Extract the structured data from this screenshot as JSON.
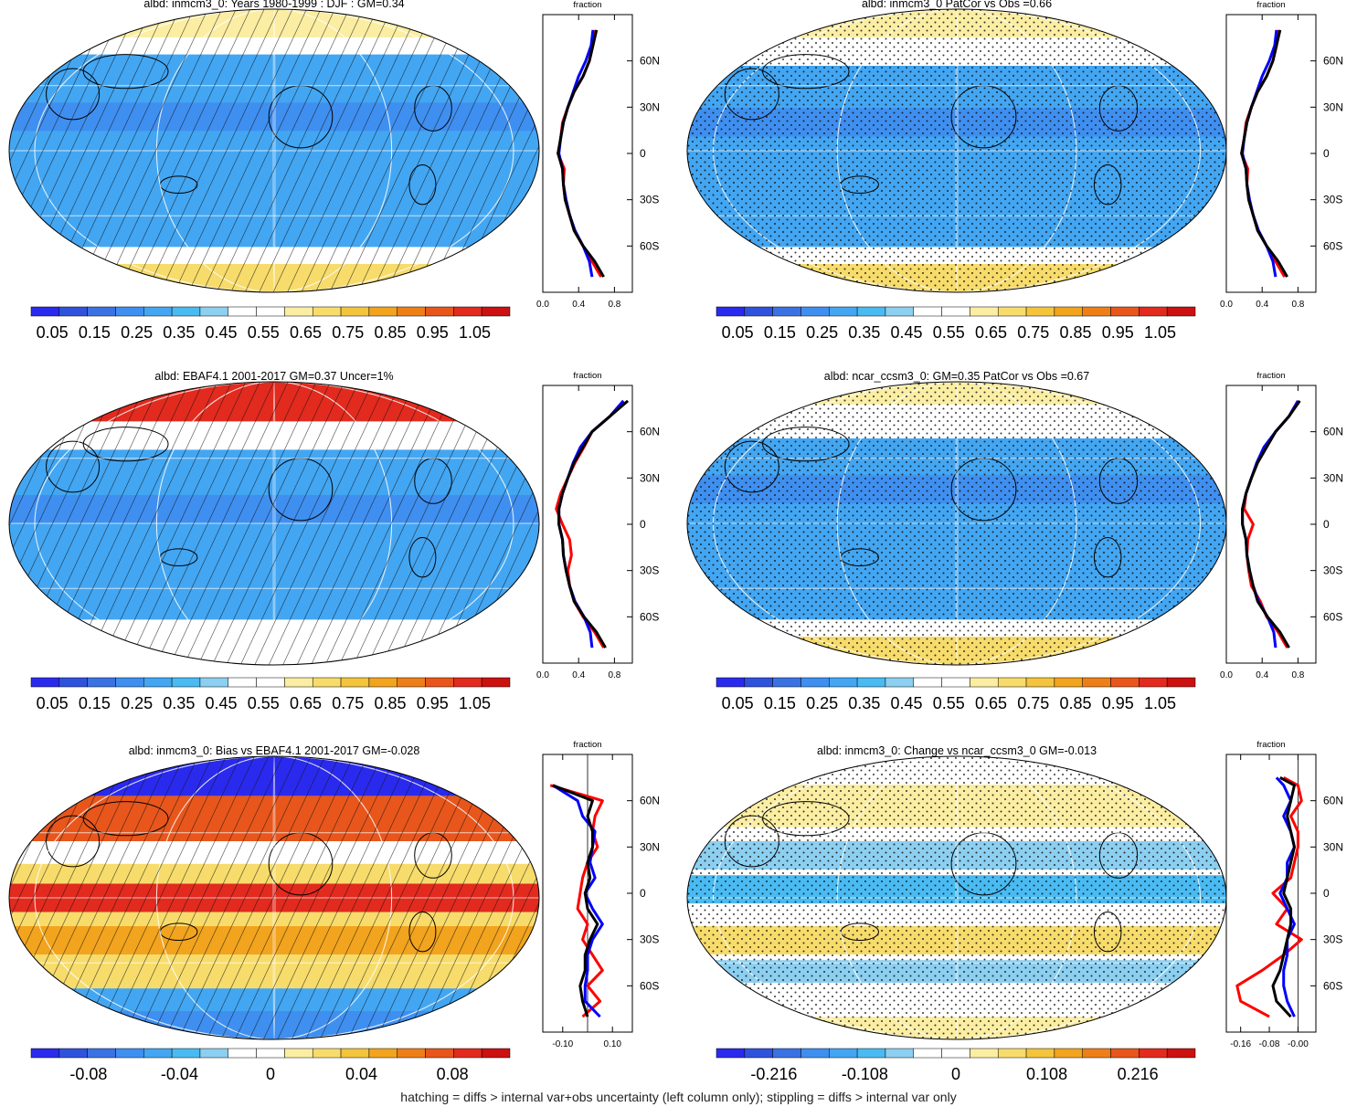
{
  "footer": "hatching = diffs > internal var+obs uncertainty (left column only); stippling = diffs > internal var only",
  "colors": {
    "abs_scale": [
      "#2a2aee",
      "#2f52dd",
      "#3a72e4",
      "#3f8ff0",
      "#43a6f2",
      "#49bbf2",
      "#8ccff0",
      "#ffffff",
      "#ffffff",
      "#fbeea3",
      "#f7dc6c",
      "#f4c43d",
      "#f2a41e",
      "#ee7f18",
      "#e8561c",
      "#e22a1e",
      "#cc1111"
    ],
    "diff_scale": [
      "#2a2aee",
      "#2f52dd",
      "#3a72e4",
      "#3f8ff0",
      "#43a6f2",
      "#49bbf2",
      "#8ccff0",
      "#ffffff",
      "#ffffff",
      "#fbeea3",
      "#f7dc6c",
      "#f4c43d",
      "#f2a41e",
      "#ee7f18",
      "#e8561c",
      "#e22a1e",
      "#cc1111"
    ],
    "model_line": "#ff0000",
    "obs_line": "#0000ff",
    "ref_line": "#000000"
  },
  "panels": [
    {
      "title": "albd: inmcm3_0: Years 1980-1999 : DJF : GM=0.34",
      "pattern": "hatch",
      "colorbar": {
        "scale": "abs_scale",
        "labels": [
          "0.05",
          "0.15",
          "0.25",
          "0.35",
          "0.45",
          "0.55",
          "0.65",
          "0.75",
          "0.85",
          "0.95",
          "1.05"
        ]
      },
      "zonal_title": "fraction",
      "zonal_xticks": [
        "0.0",
        "0.4",
        "0.8"
      ],
      "lat_labels": [
        "60N",
        "30N",
        "0",
        "30S",
        "60S"
      ]
    },
    {
      "title": "albd: inmcm3_0 PatCor vs Obs =0.66",
      "pattern": "stipple",
      "colorbar": {
        "scale": "abs_scale",
        "labels": [
          "0.05",
          "0.15",
          "0.25",
          "0.35",
          "0.45",
          "0.55",
          "0.65",
          "0.75",
          "0.85",
          "0.95",
          "1.05"
        ]
      },
      "zonal_title": "fraction",
      "zonal_xticks": [
        "0.0",
        "0.4",
        "0.8"
      ],
      "lat_labels": [
        "60N",
        "30N",
        "0",
        "30S",
        "60S"
      ]
    },
    {
      "title": "albd: EBAF4.1 2001-2017 GM=0.37 Uncer=1%",
      "pattern": "hatch",
      "colorbar": {
        "scale": "abs_scale",
        "labels": [
          "0.05",
          "0.15",
          "0.25",
          "0.35",
          "0.45",
          "0.55",
          "0.65",
          "0.75",
          "0.85",
          "0.95",
          "1.05"
        ]
      },
      "zonal_title": "fraction",
      "zonal_xticks": [
        "0.0",
        "0.4",
        "0.8"
      ],
      "lat_labels": [
        "60N",
        "30N",
        "0",
        "30S",
        "60S"
      ]
    },
    {
      "title": "albd: ncar_ccsm3_0: GM=0.35 PatCor vs Obs =0.67",
      "pattern": "stipple",
      "colorbar": {
        "scale": "abs_scale",
        "labels": [
          "0.05",
          "0.15",
          "0.25",
          "0.35",
          "0.45",
          "0.55",
          "0.65",
          "0.75",
          "0.85",
          "0.95",
          "1.05"
        ]
      },
      "zonal_title": "fraction",
      "zonal_xticks": [
        "0.0",
        "0.4",
        "0.8"
      ],
      "lat_labels": [
        "60N",
        "30N",
        "0",
        "30S",
        "60S"
      ]
    },
    {
      "title": "albd: inmcm3_0: Bias vs EBAF4.1 2001-2017 GM=-0.028",
      "pattern": "hatch",
      "colorbar": {
        "scale": "diff_scale",
        "labels": [
          "-0.08",
          "-0.04",
          "0",
          "0.04",
          "0.08"
        ]
      },
      "zonal_title": "fraction",
      "zonal_xticks": [
        "-0.10",
        "0.10"
      ],
      "lat_labels": [
        "60N",
        "30N",
        "0",
        "30S",
        "60S"
      ]
    },
    {
      "title": "albd: inmcm3_0: Change vs ncar_ccsm3_0 GM=-0.013",
      "pattern": "stipple",
      "colorbar": {
        "scale": "diff_scale",
        "labels": [
          "-0.216",
          "-0.108",
          "0",
          "0.108",
          "0.216"
        ]
      },
      "zonal_title": "fraction",
      "zonal_xticks": [
        "-0.16",
        "-0.08",
        "-0.00"
      ],
      "lat_labels": [
        "60N",
        "30N",
        "0",
        "30S",
        "60S"
      ]
    }
  ],
  "chart_data": [
    {
      "type": "line",
      "title": "fraction",
      "xlabel": "",
      "ylabel": "",
      "xlim": [
        0.0,
        1.0
      ],
      "ylim": [
        -90,
        90
      ],
      "x_ticks": [
        0.0,
        0.4,
        0.8
      ],
      "y_ticks": [
        60,
        30,
        0,
        -30,
        -60
      ],
      "y": [
        -80,
        -70,
        -60,
        -50,
        -40,
        -30,
        -20,
        -10,
        0,
        10,
        20,
        30,
        40,
        50,
        60,
        70,
        80
      ],
      "series": [
        {
          "values": [
            0.65,
            0.55,
            0.45,
            0.35,
            0.3,
            0.25,
            0.23,
            0.24,
            0.17,
            0.2,
            0.22,
            0.28,
            0.35,
            0.45,
            0.52,
            0.56,
            0.58
          ]
        },
        {
          "values": [
            0.55,
            0.52,
            0.45,
            0.36,
            0.3,
            0.26,
            0.23,
            0.22,
            0.18,
            0.2,
            0.23,
            0.28,
            0.34,
            0.4,
            0.48,
            0.54,
            0.56
          ]
        },
        {
          "values": [
            0.68,
            0.58,
            0.45,
            0.35,
            0.3,
            0.25,
            0.23,
            0.22,
            0.17,
            0.2,
            0.23,
            0.28,
            0.35,
            0.45,
            0.52,
            0.56,
            0.6
          ]
        }
      ]
    },
    {
      "type": "line",
      "title": "fraction",
      "xlabel": "",
      "ylabel": "",
      "xlim": [
        0.0,
        1.0
      ],
      "ylim": [
        -90,
        90
      ],
      "x_ticks": [
        0.0,
        0.4,
        0.8
      ],
      "y_ticks": [
        60,
        30,
        0,
        -30,
        -60
      ],
      "y": [
        -80,
        -70,
        -60,
        -50,
        -40,
        -30,
        -20,
        -10,
        0,
        10,
        20,
        30,
        40,
        50,
        60,
        70,
        80
      ],
      "series": [
        {
          "values": [
            0.65,
            0.55,
            0.45,
            0.35,
            0.3,
            0.25,
            0.23,
            0.24,
            0.17,
            0.2,
            0.22,
            0.28,
            0.35,
            0.45,
            0.52,
            0.56,
            0.58
          ]
        },
        {
          "values": [
            0.55,
            0.52,
            0.45,
            0.36,
            0.3,
            0.26,
            0.23,
            0.22,
            0.18,
            0.2,
            0.23,
            0.28,
            0.34,
            0.4,
            0.48,
            0.54,
            0.56
          ]
        },
        {
          "values": [
            0.68,
            0.58,
            0.45,
            0.35,
            0.3,
            0.25,
            0.23,
            0.22,
            0.17,
            0.2,
            0.23,
            0.28,
            0.35,
            0.45,
            0.52,
            0.56,
            0.6
          ]
        }
      ]
    },
    {
      "type": "line",
      "title": "fraction",
      "xlabel": "",
      "ylabel": "",
      "xlim": [
        0.0,
        1.0
      ],
      "ylim": [
        -90,
        90
      ],
      "x_ticks": [
        0.0,
        0.4,
        0.8
      ],
      "y_ticks": [
        60,
        30,
        0,
        -30,
        -60
      ],
      "y": [
        -80,
        -70,
        -60,
        -50,
        -40,
        -30,
        -20,
        -10,
        0,
        10,
        20,
        30,
        40,
        50,
        60,
        70,
        80
      ],
      "series": [
        {
          "values": [
            0.68,
            0.58,
            0.45,
            0.35,
            0.3,
            0.28,
            0.32,
            0.3,
            0.22,
            0.15,
            0.2,
            0.28,
            0.36,
            0.46,
            0.55,
            0.75,
            0.9
          ]
        },
        {
          "values": [
            0.55,
            0.53,
            0.46,
            0.36,
            0.3,
            0.26,
            0.23,
            0.22,
            0.18,
            0.18,
            0.22,
            0.28,
            0.34,
            0.42,
            0.55,
            0.75,
            0.9
          ]
        },
        {
          "values": [
            0.7,
            0.6,
            0.46,
            0.35,
            0.3,
            0.26,
            0.23,
            0.22,
            0.18,
            0.18,
            0.22,
            0.28,
            0.35,
            0.45,
            0.55,
            0.75,
            0.95
          ]
        }
      ]
    },
    {
      "type": "line",
      "title": "fraction",
      "xlabel": "",
      "ylabel": "",
      "xlim": [
        0.0,
        1.0
      ],
      "ylim": [
        -90,
        90
      ],
      "x_ticks": [
        0.0,
        0.4,
        0.8
      ],
      "y_ticks": [
        60,
        30,
        0,
        -30,
        -60
      ],
      "y": [
        -80,
        -70,
        -60,
        -50,
        -40,
        -30,
        -20,
        -10,
        0,
        10,
        20,
        30,
        40,
        50,
        60,
        70,
        80
      ],
      "series": [
        {
          "values": [
            0.68,
            0.58,
            0.45,
            0.38,
            0.28,
            0.25,
            0.23,
            0.24,
            0.3,
            0.2,
            0.22,
            0.28,
            0.35,
            0.45,
            0.55,
            0.7,
            0.8
          ]
        },
        {
          "values": [
            0.55,
            0.53,
            0.46,
            0.36,
            0.3,
            0.26,
            0.23,
            0.22,
            0.18,
            0.18,
            0.22,
            0.28,
            0.34,
            0.42,
            0.55,
            0.7,
            0.8
          ]
        },
        {
          "values": [
            0.7,
            0.6,
            0.46,
            0.35,
            0.3,
            0.26,
            0.23,
            0.22,
            0.18,
            0.18,
            0.22,
            0.28,
            0.35,
            0.45,
            0.55,
            0.7,
            0.82
          ]
        }
      ]
    },
    {
      "type": "line",
      "title": "fraction",
      "xlabel": "",
      "ylabel": "",
      "xlim": [
        -0.18,
        0.18
      ],
      "ylim": [
        -90,
        90
      ],
      "x_ticks": [
        -0.1,
        0.1
      ],
      "y_ticks": [
        60,
        30,
        0,
        -30,
        -60
      ],
      "y": [
        -80,
        -70,
        -60,
        -50,
        -40,
        -30,
        -20,
        -10,
        0,
        10,
        20,
        30,
        40,
        50,
        60,
        70
      ],
      "series": [
        {
          "values": [
            -0.02,
            0.05,
            0.0,
            0.06,
            0.02,
            -0.02,
            0.0,
            -0.04,
            -0.03,
            -0.02,
            0.0,
            0.04,
            0.02,
            0.03,
            0.06,
            -0.15
          ]
        },
        {
          "values": [
            0.05,
            -0.01,
            -0.01,
            0.0,
            0.0,
            0.02,
            0.06,
            0.02,
            -0.01,
            0.03,
            0.01,
            0.02,
            0.03,
            -0.02,
            -0.04,
            -0.14
          ]
        },
        {
          "values": [
            0.0,
            -0.02,
            -0.03,
            -0.01,
            -0.01,
            0.01,
            0.04,
            0.0,
            -0.01,
            0.01,
            0.0,
            0.02,
            0.02,
            0.0,
            0.02,
            -0.14
          ]
        }
      ]
    },
    {
      "type": "line",
      "title": "fraction",
      "xlabel": "",
      "ylabel": "",
      "xlim": [
        -0.2,
        0.05
      ],
      "ylim": [
        -90,
        90
      ],
      "x_ticks": [
        -0.16,
        -0.08,
        -0.0
      ],
      "y_ticks": [
        60,
        30,
        0,
        -30,
        -60
      ],
      "y": [
        -80,
        -70,
        -60,
        -50,
        -40,
        -30,
        -20,
        -10,
        0,
        10,
        20,
        30,
        40,
        50,
        60,
        70,
        75
      ],
      "series": [
        {
          "values": [
            -0.08,
            -0.16,
            -0.17,
            -0.1,
            -0.04,
            0.01,
            -0.06,
            -0.03,
            -0.07,
            -0.02,
            -0.01,
            0.0,
            0.0,
            -0.02,
            0.01,
            0.0,
            -0.04
          ]
        },
        {
          "values": [
            -0.01,
            -0.03,
            -0.04,
            -0.04,
            -0.03,
            -0.03,
            -0.01,
            -0.03,
            -0.05,
            -0.03,
            -0.03,
            -0.01,
            -0.02,
            -0.04,
            -0.02,
            -0.04,
            -0.06
          ]
        },
        {
          "values": [
            -0.02,
            -0.06,
            -0.07,
            -0.05,
            -0.04,
            -0.03,
            -0.02,
            -0.02,
            -0.04,
            -0.03,
            -0.02,
            -0.01,
            -0.02,
            -0.03,
            -0.02,
            -0.01,
            -0.05
          ]
        }
      ]
    }
  ]
}
